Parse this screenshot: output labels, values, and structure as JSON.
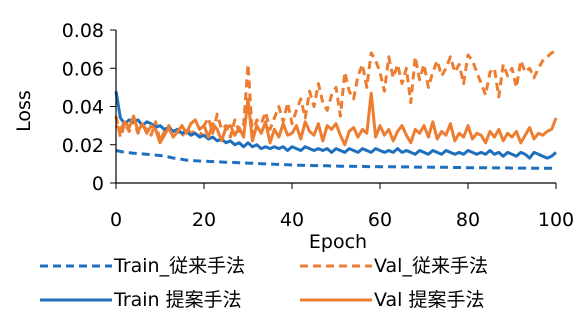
{
  "chart_data": {
    "type": "line",
    "title": "",
    "xlabel": "Epoch",
    "ylabel": "Loss",
    "xlim": [
      0,
      100
    ],
    "ylim": [
      0,
      0.08
    ],
    "x_ticks": [
      0,
      20,
      40,
      60,
      80,
      100
    ],
    "y_ticks": [
      0,
      0.02,
      0.04,
      0.06,
      0.08
    ],
    "y_tick_labels": [
      "0",
      "0.02",
      "0.04",
      "0.06",
      "0.08"
    ],
    "grid": false,
    "legend_position": "bottom",
    "x": [
      0,
      1,
      2,
      3,
      4,
      5,
      6,
      7,
      8,
      9,
      10,
      11,
      12,
      13,
      14,
      15,
      16,
      17,
      18,
      19,
      20,
      21,
      22,
      23,
      24,
      25,
      26,
      27,
      28,
      29,
      30,
      31,
      32,
      33,
      34,
      35,
      36,
      37,
      38,
      39,
      40,
      41,
      42,
      43,
      44,
      45,
      46,
      47,
      48,
      49,
      50,
      51,
      52,
      53,
      54,
      55,
      56,
      57,
      58,
      59,
      60,
      61,
      62,
      63,
      64,
      65,
      66,
      67,
      68,
      69,
      70,
      71,
      72,
      73,
      74,
      75,
      76,
      77,
      78,
      79,
      80,
      81,
      82,
      83,
      84,
      85,
      86,
      87,
      88,
      89,
      90,
      91,
      92,
      93,
      94,
      95,
      96,
      97,
      98,
      99,
      100
    ],
    "series": [
      {
        "name": "Train_従来手法",
        "color": "#1f6fbf",
        "dash": true,
        "values": [
          0.017,
          0.0165,
          0.016,
          0.0158,
          0.0156,
          0.0154,
          0.0152,
          0.015,
          0.0148,
          0.0146,
          0.0144,
          0.014,
          0.0136,
          0.013,
          0.0128,
          0.0124,
          0.012,
          0.0118,
          0.0116,
          0.0115,
          0.0114,
          0.0113,
          0.0112,
          0.0111,
          0.011,
          0.0109,
          0.0108,
          0.0107,
          0.0106,
          0.0105,
          0.0104,
          0.0103,
          0.0102,
          0.0101,
          0.01,
          0.0099,
          0.0098,
          0.0097,
          0.0096,
          0.0095,
          0.0094,
          0.0093,
          0.0093,
          0.0092,
          0.0092,
          0.0091,
          0.0091,
          0.009,
          0.009,
          0.0089,
          0.0089,
          0.0088,
          0.0088,
          0.0088,
          0.0087,
          0.0087,
          0.0087,
          0.0086,
          0.0086,
          0.0086,
          0.0085,
          0.0085,
          0.0085,
          0.0085,
          0.0084,
          0.0084,
          0.0084,
          0.0084,
          0.0083,
          0.0083,
          0.0083,
          0.0083,
          0.0082,
          0.0082,
          0.0082,
          0.0082,
          0.0081,
          0.0081,
          0.0081,
          0.0081,
          0.008,
          0.008,
          0.008,
          0.008,
          0.008,
          0.0079,
          0.0079,
          0.0079,
          0.0079,
          0.0079,
          0.0078,
          0.0078,
          0.0078,
          0.0078,
          0.0078,
          0.0077,
          0.0077,
          0.0077,
          0.0077,
          0.0077,
          0.0076
        ]
      },
      {
        "name": "Val_従来手法",
        "color": "#ed7d31",
        "dash": true,
        "values": [
          0.035,
          0.024,
          0.031,
          0.027,
          0.033,
          0.026,
          0.03,
          0.028,
          0.025,
          0.032,
          0.022,
          0.027,
          0.03,
          0.026,
          0.028,
          0.024,
          0.029,
          0.026,
          0.027,
          0.024,
          0.03,
          0.034,
          0.026,
          0.036,
          0.028,
          0.03,
          0.024,
          0.033,
          0.027,
          0.03,
          0.062,
          0.025,
          0.033,
          0.031,
          0.037,
          0.028,
          0.034,
          0.04,
          0.032,
          0.042,
          0.031,
          0.038,
          0.044,
          0.034,
          0.048,
          0.04,
          0.052,
          0.042,
          0.038,
          0.046,
          0.05,
          0.035,
          0.058,
          0.048,
          0.044,
          0.056,
          0.062,
          0.05,
          0.068,
          0.064,
          0.058,
          0.048,
          0.066,
          0.055,
          0.062,
          0.052,
          0.06,
          0.042,
          0.066,
          0.054,
          0.062,
          0.05,
          0.058,
          0.064,
          0.056,
          0.06,
          0.066,
          0.058,
          0.062,
          0.052,
          0.067,
          0.064,
          0.058,
          0.052,
          0.046,
          0.058,
          0.06,
          0.045,
          0.062,
          0.056,
          0.06,
          0.05,
          0.064,
          0.058,
          0.06,
          0.055,
          0.06,
          0.064,
          0.066,
          0.068,
          0.069
        ]
      },
      {
        "name": "Train 提案手法",
        "color": "#1f6fbf",
        "dash": false,
        "values": [
          0.048,
          0.034,
          0.031,
          0.033,
          0.032,
          0.033,
          0.03,
          0.032,
          0.031,
          0.029,
          0.03,
          0.028,
          0.029,
          0.027,
          0.028,
          0.026,
          0.027,
          0.025,
          0.026,
          0.024,
          0.025,
          0.023,
          0.024,
          0.022,
          0.023,
          0.021,
          0.022,
          0.02,
          0.021,
          0.019,
          0.021,
          0.019,
          0.02,
          0.018,
          0.019,
          0.018,
          0.019,
          0.018,
          0.019,
          0.017,
          0.019,
          0.018,
          0.017,
          0.019,
          0.018,
          0.017,
          0.018,
          0.017,
          0.018,
          0.016,
          0.018,
          0.017,
          0.016,
          0.018,
          0.017,
          0.016,
          0.018,
          0.017,
          0.016,
          0.018,
          0.017,
          0.016,
          0.017,
          0.016,
          0.018,
          0.016,
          0.017,
          0.016,
          0.015,
          0.017,
          0.016,
          0.015,
          0.017,
          0.016,
          0.015,
          0.017,
          0.016,
          0.015,
          0.016,
          0.015,
          0.017,
          0.016,
          0.015,
          0.016,
          0.015,
          0.017,
          0.015,
          0.016,
          0.014,
          0.016,
          0.015,
          0.014,
          0.016,
          0.015,
          0.013,
          0.016,
          0.015,
          0.014,
          0.013,
          0.014,
          0.016
        ]
      },
      {
        "name": "Val 提案手法",
        "color": "#ed7d31",
        "dash": false,
        "values": [
          0.03,
          0.028,
          0.032,
          0.029,
          0.035,
          0.027,
          0.031,
          0.026,
          0.03,
          0.028,
          0.021,
          0.025,
          0.029,
          0.024,
          0.027,
          0.03,
          0.026,
          0.031,
          0.033,
          0.028,
          0.03,
          0.024,
          0.031,
          0.028,
          0.022,
          0.029,
          0.03,
          0.025,
          0.029,
          0.024,
          0.044,
          0.022,
          0.03,
          0.026,
          0.032,
          0.021,
          0.028,
          0.024,
          0.031,
          0.025,
          0.026,
          0.03,
          0.023,
          0.032,
          0.027,
          0.025,
          0.031,
          0.022,
          0.03,
          0.028,
          0.031,
          0.025,
          0.02,
          0.027,
          0.029,
          0.024,
          0.028,
          0.026,
          0.047,
          0.024,
          0.03,
          0.025,
          0.028,
          0.022,
          0.027,
          0.03,
          0.025,
          0.021,
          0.028,
          0.026,
          0.03,
          0.024,
          0.032,
          0.023,
          0.027,
          0.025,
          0.031,
          0.022,
          0.026,
          0.024,
          0.03,
          0.023,
          0.026,
          0.025,
          0.021,
          0.027,
          0.024,
          0.028,
          0.022,
          0.026,
          0.024,
          0.027,
          0.021,
          0.025,
          0.029,
          0.023,
          0.026,
          0.025,
          0.027,
          0.028,
          0.034
        ]
      }
    ]
  }
}
